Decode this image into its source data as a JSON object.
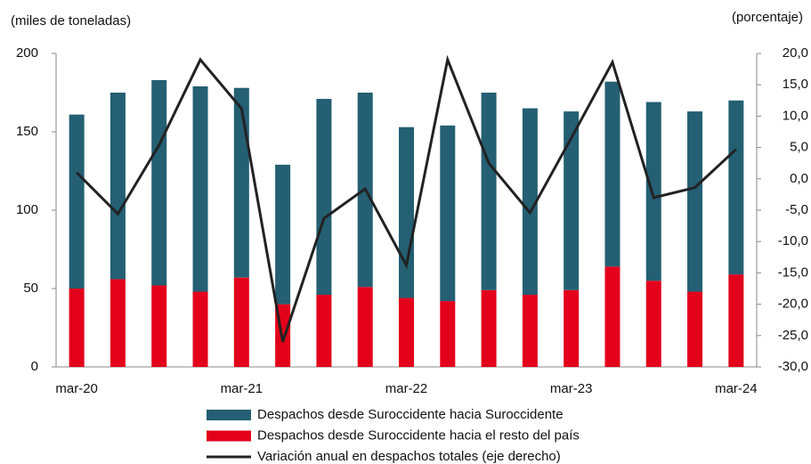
{
  "chart_data": {
    "type": "bar",
    "stacked": true,
    "left_axis_label": "(miles de toneladas)",
    "right_axis_label": "(porcentaje)",
    "categories": [
      "mar-20",
      null,
      null,
      null,
      "mar-21",
      null,
      null,
      null,
      "mar-22",
      null,
      null,
      null,
      "mar-23",
      null,
      null,
      null,
      "mar-24"
    ],
    "series": [
      {
        "name": "Despachos desde Suroccidente hacia Suroccidente",
        "type": "bar",
        "color": "#245f73",
        "values": [
          111,
          119,
          131,
          131,
          121,
          89,
          125,
          124,
          109,
          112,
          126,
          119,
          114,
          118,
          114,
          115,
          111
        ]
      },
      {
        "name": "Despachos desde Suroccidente hacia el resto del país",
        "type": "bar",
        "color": "#e3001b",
        "values": [
          50,
          56,
          52,
          48,
          57,
          40,
          46,
          51,
          44,
          42,
          49,
          46,
          49,
          64,
          55,
          48,
          59
        ]
      },
      {
        "name": "Variación anual en despachos totales (eje derecho)",
        "type": "line",
        "axis": "y2",
        "color": "#222222",
        "values": [
          1.0,
          -5.6,
          5.4,
          19.0,
          11.2,
          -26.0,
          -6.3,
          -1.6,
          -13.8,
          19.0,
          2.5,
          -5.4,
          6.5,
          18.6,
          -3.0,
          -1.4,
          4.7
        ]
      }
    ],
    "ylim": [
      0,
      200
    ],
    "yticks": [
      0,
      50,
      100,
      150,
      200
    ],
    "y2lim": [
      -30,
      20
    ],
    "y2ticks": [
      {
        "value": -30,
        "label": "-30,0"
      },
      {
        "value": -25,
        "label": "-25,0"
      },
      {
        "value": -20,
        "label": "-20,0"
      },
      {
        "value": -15,
        "label": "-15,0"
      },
      {
        "value": -10,
        "label": "-10,0"
      },
      {
        "value": -5,
        "label": "-5,0"
      },
      {
        "value": 0,
        "label": "0,0"
      },
      {
        "value": 5,
        "label": "5,0"
      },
      {
        "value": 10,
        "label": "10,0"
      },
      {
        "value": 15,
        "label": "15,0"
      },
      {
        "value": 20,
        "label": "20,0"
      }
    ],
    "grid": false
  }
}
